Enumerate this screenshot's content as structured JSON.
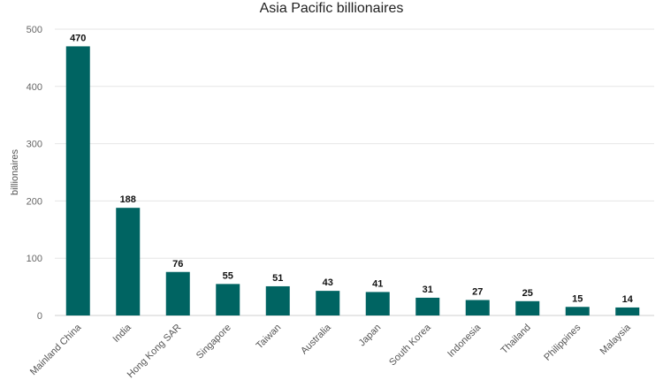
{
  "chart_data": {
    "type": "bar",
    "title": "Asia Pacific billionaires",
    "xlabel": "",
    "ylabel": "billionaires",
    "categories": [
      "Mainland China",
      "India",
      "Hong Kong SAR",
      "Singapore",
      "Taiwan",
      "Australia",
      "Japan",
      "South Korea",
      "Indonesia",
      "Thailand",
      "Philippines",
      "Malaysia"
    ],
    "values": [
      470,
      188,
      76,
      55,
      51,
      43,
      41,
      31,
      27,
      25,
      15,
      14
    ],
    "ylim": [
      0,
      500
    ],
    "yticks": [
      0,
      100,
      200,
      300,
      400,
      500
    ],
    "grid": true,
    "bar_color": "#006462",
    "data_labels": true
  }
}
